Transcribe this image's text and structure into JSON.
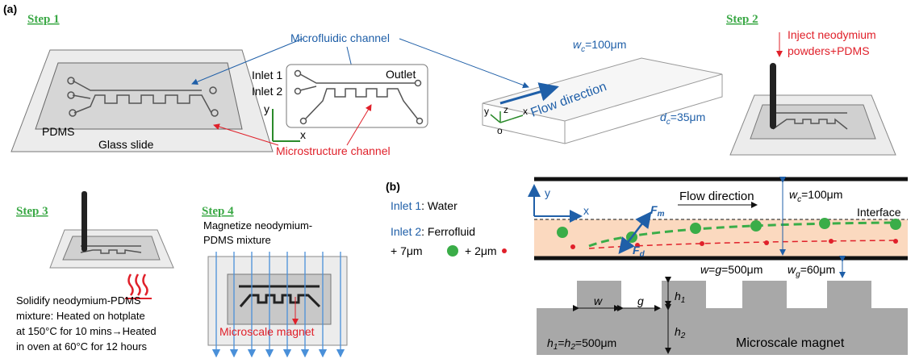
{
  "panel_a": {
    "label": "(a)",
    "step1": {
      "title": "Step 1",
      "microfluidic_channel": "Microfluidic channel",
      "pdms": "PDMS",
      "glass_slide": "Glass slide",
      "inlet1": "Inlet 1",
      "inlet2": "Inlet 2",
      "outlet": "Outlet",
      "axis_y": "y",
      "axis_x": "x",
      "microstructure_channel": "Microstructure channel",
      "channel_width": {
        "var": "w",
        "sub": "c",
        "rest": "=100μm"
      },
      "channel_depth": {
        "var": "d",
        "sub": "c",
        "rest": "=35μm"
      },
      "flow_direction": "Flow direction",
      "axis3d_z": "z",
      "axis3d_y": "y",
      "axis3d_x": "x",
      "axis3d_o": "o"
    },
    "step2": {
      "title": "Step 2",
      "text_lines": [
        "Inject neodymium",
        "powders+PDMS"
      ]
    },
    "step3": {
      "title": "Step 3",
      "text_lines": [
        "Solidify neodymium-PDMS",
        "mixture: Heated on hotplate",
        "at 150°C for 10 mins→Heated",
        "in oven at 60°C for 12 hours"
      ]
    },
    "step4": {
      "title": "Step 4",
      "text_lines": [
        "Magnetize neodymium-",
        "PDMS mixture"
      ],
      "magnet": "Microscale magnet"
    }
  },
  "panel_b": {
    "label": "(b)",
    "inlet1": {
      "name": "Inlet 1",
      "rest": ": Water"
    },
    "inlet2": {
      "name": "Inlet 2",
      "rest": ": Ferrofluid"
    },
    "particle_large": "+ 7μm",
    "particle_small": "+ 2μm",
    "axis_y": "y",
    "axis_x": "x",
    "force_m": {
      "var": "F",
      "sub": "m"
    },
    "force_d": {
      "var": "F",
      "sub": "d"
    },
    "flow_direction": "Flow direction",
    "channel_width": {
      "var": "w",
      "sub": "c",
      "rest": "=100μm"
    },
    "interface": "Interface",
    "tooth_size": {
      "w": "w",
      "eq": "=",
      "g": "g",
      "rest": "=500μm"
    },
    "gap_width": {
      "var": "w",
      "sub": "g",
      "rest": "=60μm"
    },
    "w": "w",
    "g": "g",
    "h1": {
      "var": "h",
      "sub": "1"
    },
    "h2": {
      "var": "h",
      "sub": "2"
    },
    "heights": {
      "h1": "h",
      "s1": "1",
      "eq": "=",
      "h2": "h",
      "s2": "2",
      "rest": "=500μm"
    },
    "magnet": "Microscale magnet"
  }
}
